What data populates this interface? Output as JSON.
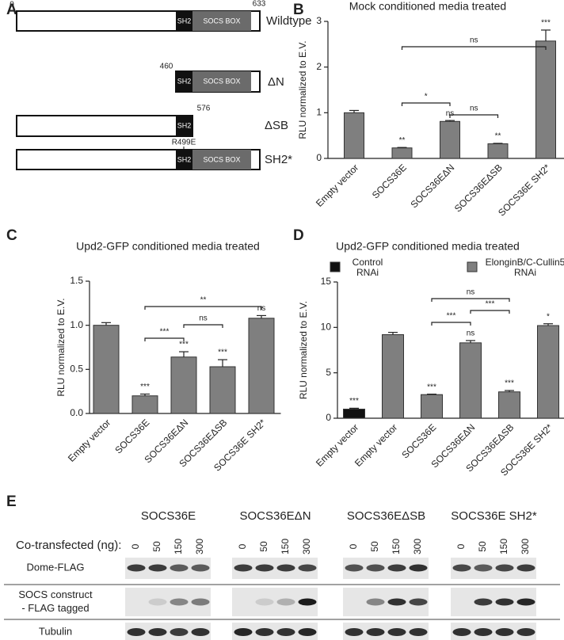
{
  "panel_a": {
    "label": "A",
    "start": 0,
    "end": 633,
    "sh2": "SH2",
    "socs_box": "SOCS BOX",
    "constructs": [
      {
        "name": "Wildtype"
      },
      {
        "name": "ΔN",
        "position": 460
      },
      {
        "name": "ΔSB",
        "position": 576
      },
      {
        "name": "SH2*",
        "mutation": "R499E"
      }
    ]
  },
  "chart_data": [
    {
      "panel_label": "B",
      "type": "bar",
      "title": "Mock conditioned media treated",
      "y_label": "RLU normalized to E.V.",
      "categories": [
        "Empty vector",
        "SOCS36E",
        "SOCS36EΔN",
        "SOCS36EΔSB",
        "SOCS36E SH2*"
      ],
      "values": [
        1.0,
        0.23,
        0.81,
        0.32,
        2.57
      ],
      "errors": [
        0.05,
        0.01,
        0.02,
        0.01,
        0.24
      ],
      "color": "#7f7f7f",
      "significance": [
        null,
        "**",
        "ns",
        "**",
        "***"
      ],
      "comparison_labels": [
        "ns",
        "*",
        "ns"
      ],
      "ylim": [
        0,
        3
      ],
      "yticks": [
        0,
        1,
        2,
        3
      ]
    },
    {
      "panel_label": "C",
      "type": "bar",
      "title": "Upd2-GFP conditioned media treated",
      "y_label": "RLU normalized to E.V.",
      "categories": [
        "Empty vector",
        "SOCS36E",
        "SOCS36EΔN",
        "SOCS36EΔSB",
        "SOCS36E SH2*"
      ],
      "values": [
        1.0,
        0.2,
        0.64,
        0.53,
        1.08
      ],
      "errors": [
        0.03,
        0.02,
        0.06,
        0.08,
        0.03
      ],
      "color": "#7f7f7f",
      "significance": [
        null,
        "***",
        "***",
        "***",
        "ns"
      ],
      "comparison_labels": [
        "**",
        "***",
        "ns"
      ],
      "ylim": [
        0,
        1.5
      ],
      "yticks": [
        {
          "value": 0,
          "label": "0.0"
        },
        {
          "value": 0.5,
          "label": "0.5"
        },
        {
          "value": 1,
          "label": "1.0"
        },
        {
          "value": 1.5,
          "label": "1.5"
        }
      ]
    },
    {
      "panel_label": "D",
      "type": "bar",
      "title": "Upd2-GFP conditioned media treated",
      "y_label": "RLU normalized to E.V.",
      "categories": [
        "Empty vector",
        "Empty vector",
        "SOCS36E",
        "SOCS36EΔN",
        "SOCS36EΔSB",
        "SOCS36E SH2*"
      ],
      "series": [
        {
          "name": "Control RNAi",
          "color": "#111111",
          "values": [
            1.0,
            null,
            null,
            null,
            null,
            null
          ],
          "errors": [
            0.1,
            null,
            null,
            null,
            null,
            null
          ]
        },
        {
          "name": "ElonginB/C-Cullin5 RNAi",
          "color": "#7f7f7f",
          "values": [
            null,
            9.2,
            2.6,
            8.3,
            2.9,
            10.2
          ],
          "errors": [
            null,
            0.25,
            0.05,
            0.25,
            0.15,
            0.2
          ]
        }
      ],
      "significance": [
        "***",
        null,
        "***",
        "ns",
        "***",
        "*"
      ],
      "comparison_labels": [
        "ns",
        "***",
        "***"
      ],
      "ylim": [
        0,
        15
      ],
      "yticks": [
        0,
        5,
        10,
        15
      ]
    }
  ],
  "panel_e": {
    "label": "E",
    "groups": [
      "SOCS36E",
      "SOCS36EΔN",
      "SOCS36EΔSB",
      "SOCS36E SH2*"
    ],
    "cotransfected_label": "Co-transfected (ng):",
    "amounts": [
      0,
      50,
      150,
      300
    ],
    "rows": [
      [
        "Dome-FLAG"
      ],
      [
        "SOCS construct",
        "- FLAG tagged"
      ],
      [
        "Tubulin"
      ]
    ]
  }
}
